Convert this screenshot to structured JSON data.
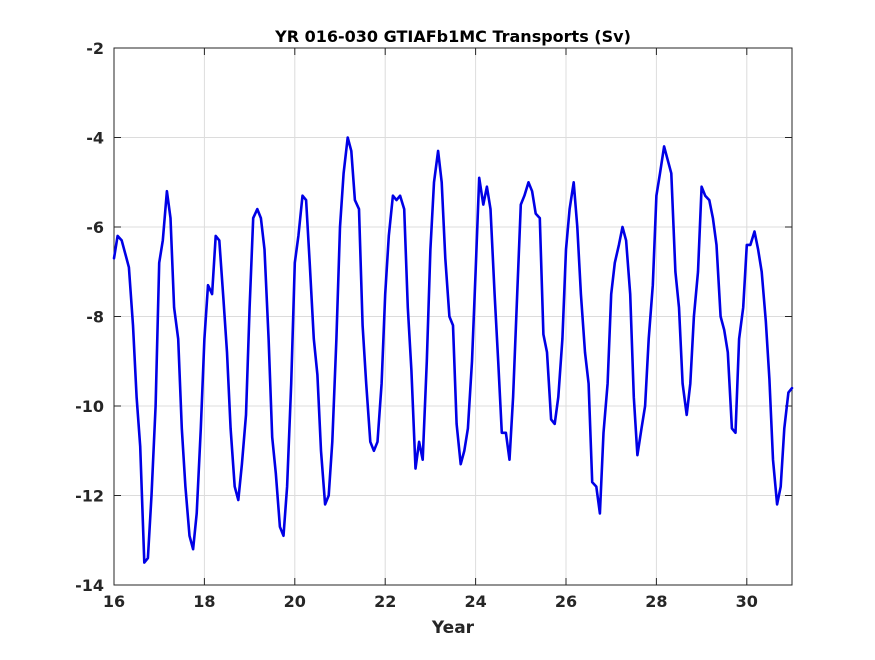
{
  "chart_data": {
    "type": "line",
    "title": "YR 016-030 GTIAFb1MC Transports (Sv)",
    "xlabel": "Year",
    "ylabel": "",
    "xlim": [
      16,
      31
    ],
    "ylim": [
      -14,
      -2
    ],
    "xticks": [
      16,
      18,
      20,
      22,
      24,
      26,
      28,
      30
    ],
    "yticks": [
      -14,
      -12,
      -10,
      -8,
      -6,
      -4,
      -2
    ],
    "grid": true,
    "series": [
      {
        "color": "#0000e6",
        "x": [
          16.0,
          16.08,
          16.17,
          16.25,
          16.33,
          16.42,
          16.5,
          16.58,
          16.67,
          16.75,
          16.83,
          16.92,
          17.0,
          17.08,
          17.17,
          17.25,
          17.33,
          17.42,
          17.5,
          17.58,
          17.67,
          17.75,
          17.83,
          17.92,
          18.0,
          18.08,
          18.17,
          18.25,
          18.33,
          18.42,
          18.5,
          18.58,
          18.67,
          18.75,
          18.83,
          18.92,
          19.0,
          19.08,
          19.17,
          19.25,
          19.33,
          19.42,
          19.5,
          19.58,
          19.67,
          19.75,
          19.83,
          19.92,
          20.0,
          20.08,
          20.17,
          20.25,
          20.33,
          20.42,
          20.5,
          20.58,
          20.67,
          20.75,
          20.83,
          20.92,
          21.0,
          21.08,
          21.17,
          21.25,
          21.33,
          21.42,
          21.5,
          21.58,
          21.67,
          21.75,
          21.83,
          21.92,
          22.0,
          22.08,
          22.17,
          22.25,
          22.33,
          22.42,
          22.5,
          22.58,
          22.67,
          22.75,
          22.83,
          22.92,
          23.0,
          23.08,
          23.17,
          23.25,
          23.33,
          23.42,
          23.5,
          23.58,
          23.67,
          23.75,
          23.83,
          23.92,
          24.0,
          24.08,
          24.17,
          24.25,
          24.33,
          24.42,
          24.5,
          24.58,
          24.67,
          24.75,
          24.83,
          24.92,
          25.0,
          25.08,
          25.17,
          25.25,
          25.33,
          25.42,
          25.5,
          25.58,
          25.67,
          25.75,
          25.83,
          25.92,
          26.0,
          26.08,
          26.17,
          26.25,
          26.33,
          26.42,
          26.5,
          26.58,
          26.67,
          26.75,
          26.83,
          26.92,
          27.0,
          27.08,
          27.17,
          27.25,
          27.33,
          27.42,
          27.5,
          27.58,
          27.67,
          27.75,
          27.83,
          27.92,
          28.0,
          28.08,
          28.17,
          28.25,
          28.33,
          28.42,
          28.5,
          28.58,
          28.67,
          28.75,
          28.83,
          28.92,
          29.0,
          29.08,
          29.17,
          29.25,
          29.33,
          29.42,
          29.5,
          29.58,
          29.67,
          29.75,
          29.83,
          29.92,
          30.0,
          30.08,
          30.17,
          30.25,
          30.33,
          30.42,
          30.5,
          30.58,
          30.67,
          30.75,
          30.83,
          30.92,
          31.0
        ],
        "y": [
          -6.7,
          -6.2,
          -6.3,
          -6.6,
          -6.9,
          -8.2,
          -9.8,
          -10.9,
          -13.5,
          -13.4,
          -12.0,
          -10.0,
          -6.8,
          -6.3,
          -5.2,
          -5.8,
          -7.8,
          -8.5,
          -10.5,
          -11.8,
          -12.9,
          -13.2,
          -12.4,
          -10.5,
          -8.5,
          -7.3,
          -7.5,
          -6.2,
          -6.3,
          -7.6,
          -8.8,
          -10.5,
          -11.8,
          -12.1,
          -11.3,
          -10.2,
          -7.8,
          -5.8,
          -5.6,
          -5.8,
          -6.5,
          -8.5,
          -10.7,
          -11.5,
          -12.7,
          -12.9,
          -11.8,
          -9.5,
          -6.8,
          -6.2,
          -5.3,
          -5.4,
          -6.8,
          -8.5,
          -9.3,
          -11.0,
          -12.2,
          -12.0,
          -10.8,
          -8.5,
          -6.0,
          -4.8,
          -4.0,
          -4.3,
          -5.4,
          -5.6,
          -8.2,
          -9.5,
          -10.8,
          -11.0,
          -10.8,
          -9.5,
          -7.5,
          -6.2,
          -5.3,
          -5.4,
          -5.3,
          -5.6,
          -7.8,
          -9.2,
          -11.4,
          -10.8,
          -11.2,
          -9.0,
          -6.5,
          -5.0,
          -4.3,
          -5.0,
          -6.7,
          -8.0,
          -8.2,
          -10.4,
          -11.3,
          -11.0,
          -10.5,
          -9.0,
          -7.0,
          -4.9,
          -5.5,
          -5.1,
          -5.6,
          -7.5,
          -9.0,
          -10.6,
          -10.6,
          -11.2,
          -9.8,
          -7.5,
          -5.5,
          -5.3,
          -5.0,
          -5.2,
          -5.7,
          -5.8,
          -8.4,
          -8.8,
          -10.3,
          -10.4,
          -9.8,
          -8.5,
          -6.5,
          -5.6,
          -5.0,
          -6.0,
          -7.5,
          -8.8,
          -9.5,
          -11.7,
          -11.8,
          -12.4,
          -10.6,
          -9.5,
          -7.5,
          -6.8,
          -6.4,
          -6.0,
          -6.3,
          -7.5,
          -9.8,
          -11.1,
          -10.5,
          -10.0,
          -8.5,
          -7.3,
          -5.3,
          -4.8,
          -4.2,
          -4.5,
          -4.8,
          -7.0,
          -7.8,
          -9.5,
          -10.2,
          -9.5,
          -8.0,
          -7.0,
          -5.1,
          -5.3,
          -5.4,
          -5.8,
          -6.4,
          -8.0,
          -8.3,
          -8.8,
          -10.5,
          -10.6,
          -8.5,
          -7.8,
          -6.4,
          -6.4,
          -6.1,
          -6.5,
          -7.0,
          -8.1,
          -9.4,
          -11.2,
          -12.2,
          -11.8,
          -10.5,
          -9.7,
          -9.6
        ]
      }
    ]
  }
}
